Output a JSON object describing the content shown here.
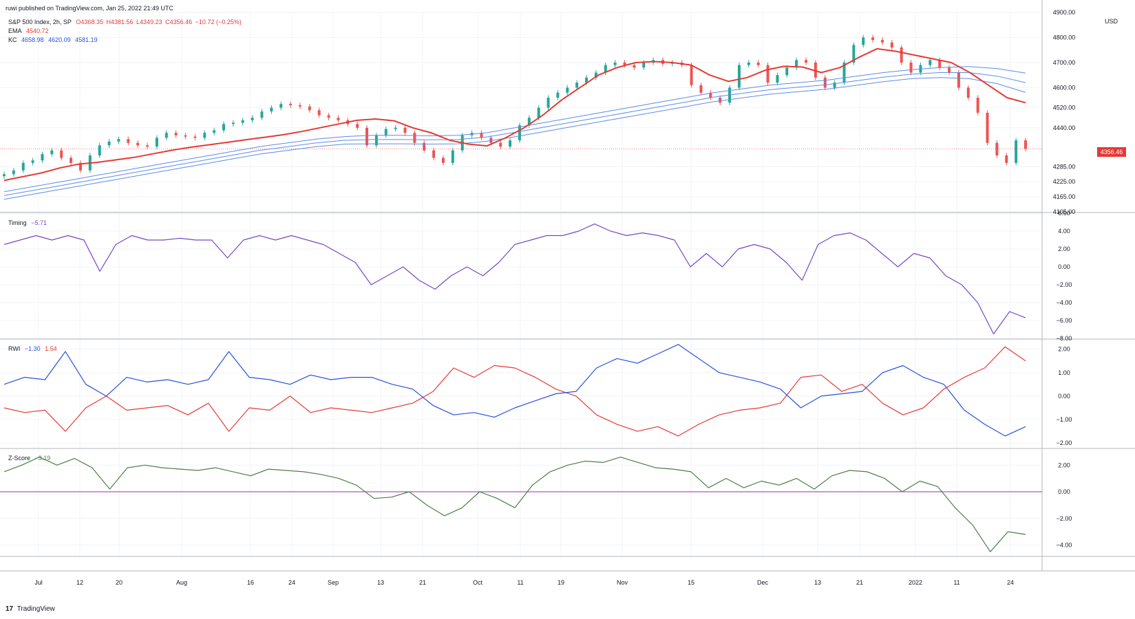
{
  "header": {
    "published": "ruwi published on TradingView.com, Jan 25, 2022 21:49 UTC"
  },
  "price_pane": {
    "symbol_line": "S&P 500 Index, 2h, SP",
    "ohlc": {
      "o": "O4368.35",
      "h": "H4381.56",
      "l": "L4349.23",
      "c": "C4356.46",
      "chg": "−10.72 (−0.25%)"
    },
    "ema_label": "EMA",
    "ema_value": "4540.72",
    "kc_label": "KC",
    "kc_values": [
      "4658.98",
      "4620.09",
      "4581.19"
    ],
    "last_price": "4356.46",
    "currency": "USD"
  },
  "timing_pane": {
    "label": "Timing",
    "value": "−5.71"
  },
  "rwi_pane": {
    "label": "RWI",
    "value_low": "−1.30",
    "value_high": "1.54"
  },
  "zscore_pane": {
    "label": "Z-Score",
    "value": "−3.19"
  },
  "footer": {
    "brand": "TradingView",
    "logo_glyph": "17"
  },
  "colors": {
    "ema": "#e53935",
    "kc": "#5b8ce8",
    "timing": "#7348c8",
    "rwi_high": "#e53935",
    "rwi_low": "#2451e0",
    "zscore": "#4d7d46",
    "up": "#26a69a",
    "down": "#ef5350",
    "zero_line": "#9c27b0"
  },
  "chart_data": [
    {
      "type": "candlestick",
      "title": "S&P 500 Index, 2h, SP",
      "ylim": [
        4105,
        4900
      ],
      "y_ticks": [
        "4105.00",
        "4165.00",
        "4225.00",
        "4285.00",
        "4356.46",
        "4440.00",
        "4520.00",
        "4600.00",
        "4700.00",
        "4800.00",
        "4900.00"
      ],
      "x_ticks": [
        "Jul",
        "12",
        "20",
        "Aug",
        "16",
        "24",
        "Sep",
        "13",
        "21",
        "Oct",
        "11",
        "19",
        "Nov",
        "15",
        "Dec",
        "13",
        "21",
        "2022",
        "11",
        "24"
      ],
      "series": [
        {
          "name": "S&P 500",
          "close": [
            4255,
            4270,
            4300,
            4310,
            4335,
            4350,
            4320,
            4300,
            4270,
            4330,
            4370,
            4385,
            4395,
            4380,
            4370,
            4365,
            4400,
            4420,
            4410,
            4405,
            4400,
            4420,
            4430,
            4455,
            4460,
            4470,
            4480,
            4505,
            4520,
            4535,
            4530,
            4525,
            4510,
            4490,
            4480,
            4470,
            4455,
            4440,
            4370,
            4410,
            4435,
            4440,
            4420,
            4380,
            4350,
            4320,
            4300,
            4350,
            4410,
            4420,
            4400,
            4380,
            4365,
            4390,
            4450,
            4480,
            4520,
            4560,
            4580,
            4600,
            4620,
            4640,
            4660,
            4690,
            4700,
            4690,
            4680,
            4700,
            4710,
            4695,
            4700,
            4690,
            4610,
            4580,
            4560,
            4540,
            4600,
            4690,
            4700,
            4690,
            4620,
            4650,
            4680,
            4710,
            4700,
            4640,
            4600,
            4620,
            4700,
            4770,
            4800,
            4790,
            4780,
            4760,
            4700,
            4660,
            4690,
            4710,
            4680,
            4660,
            4600,
            4560,
            4500,
            4380,
            4330,
            4300,
            4390,
            4356
          ]
        },
        {
          "name": "EMA",
          "values": [
            4230,
            4245,
            4260,
            4280,
            4295,
            4302,
            4312,
            4322,
            4336,
            4350,
            4362,
            4372,
            4382,
            4392,
            4402,
            4412,
            4425,
            4440,
            4455,
            4470,
            4475,
            4468,
            4440,
            4420,
            4390,
            4375,
            4368,
            4400,
            4440,
            4490,
            4550,
            4600,
            4650,
            4680,
            4700,
            4704,
            4700,
            4690,
            4650,
            4625,
            4640,
            4670,
            4685,
            4682,
            4660,
            4680,
            4720,
            4755,
            4745,
            4730,
            4715,
            4700,
            4660,
            4610,
            4560,
            4540
          ]
        },
        {
          "name": "KC upper",
          "values": [
            4185,
            4205,
            4225,
            4245,
            4265,
            4285,
            4305,
            4325,
            4345,
            4365,
            4380,
            4395,
            4405,
            4410,
            4410,
            4408,
            4410,
            4420,
            4440,
            4460,
            4480,
            4500,
            4520,
            4540,
            4560,
            4580,
            4595,
            4610,
            4620,
            4630,
            4645,
            4660,
            4672,
            4680,
            4684,
            4676,
            4658
          ]
        },
        {
          "name": "KC middle",
          "values": [
            4170,
            4190,
            4210,
            4230,
            4250,
            4270,
            4290,
            4310,
            4330,
            4350,
            4365,
            4380,
            4390,
            4393,
            4393,
            4392,
            4393,
            4403,
            4422,
            4442,
            4462,
            4482,
            4502,
            4522,
            4542,
            4562,
            4577,
            4592,
            4602,
            4612,
            4627,
            4642,
            4654,
            4660,
            4660,
            4646,
            4620
          ]
        },
        {
          "name": "KC lower",
          "values": [
            4155,
            4175,
            4195,
            4215,
            4235,
            4255,
            4275,
            4295,
            4315,
            4335,
            4350,
            4365,
            4375,
            4376,
            4376,
            4375,
            4376,
            4386,
            4404,
            4424,
            4444,
            4464,
            4484,
            4504,
            4524,
            4544,
            4559,
            4574,
            4584,
            4594,
            4609,
            4624,
            4636,
            4640,
            4636,
            4616,
            4581
          ]
        }
      ]
    },
    {
      "type": "line",
      "title": "Timing",
      "ylim": [
        -8,
        6
      ],
      "y_ticks": [
        "6.00",
        "4.00",
        "2.00",
        "0.00",
        "−2.00",
        "−4.00",
        "−6.00",
        "−8.00"
      ],
      "series": [
        {
          "name": "Timing",
          "values": [
            2.5,
            3,
            3.5,
            3,
            3.5,
            3,
            -0.5,
            2.5,
            3.5,
            3,
            3,
            3.2,
            3,
            3,
            1,
            3,
            3.5,
            3,
            3.5,
            3,
            2.5,
            1.5,
            0.5,
            -2,
            -1,
            0,
            -1.5,
            -2.5,
            -1,
            0,
            -1,
            0.5,
            2.5,
            3,
            3.5,
            3.5,
            4,
            4.8,
            4,
            3.5,
            3.8,
            3.5,
            3,
            0,
            1.5,
            0,
            2,
            2.5,
            2,
            0.5,
            -1.5,
            2.5,
            3.5,
            3.8,
            3,
            1.5,
            0,
            1.5,
            1,
            -1,
            -2,
            -4,
            -7.5,
            -5,
            -5.7
          ]
        }
      ]
    },
    {
      "type": "line",
      "title": "RWI",
      "ylim": [
        -2.2,
        2.4
      ],
      "y_ticks": [
        "2.00",
        "1.00",
        "0.00",
        "−1.00",
        "−2.00"
      ],
      "series": [
        {
          "name": "RWI high",
          "values": [
            -0.5,
            -0.7,
            -0.6,
            -1.5,
            -0.5,
            0,
            -0.6,
            -0.5,
            -0.4,
            -0.8,
            -0.3,
            -1.5,
            -0.5,
            -0.6,
            0,
            -0.7,
            -0.5,
            -0.6,
            -0.7,
            -0.5,
            -0.3,
            0.2,
            1.2,
            0.8,
            1.3,
            1.2,
            0.8,
            0.3,
            0,
            -0.8,
            -1.2,
            -1.5,
            -1.3,
            -1.7,
            -1.2,
            -0.8,
            -0.6,
            -0.5,
            -0.3,
            0.8,
            0.9,
            0.2,
            0.5,
            -0.3,
            -0.8,
            -0.5,
            0.3,
            0.8,
            1.2,
            2.1,
            1.5
          ]
        },
        {
          "name": "RWI low",
          "values": [
            0.5,
            0.8,
            0.7,
            1.9,
            0.5,
            0,
            0.8,
            0.6,
            0.7,
            0.5,
            0.7,
            1.9,
            0.8,
            0.7,
            0.5,
            0.9,
            0.7,
            0.8,
            0.8,
            0.5,
            0.3,
            -0.4,
            -0.8,
            -0.7,
            -0.9,
            -0.5,
            -0.2,
            0.1,
            0.2,
            1.2,
            1.6,
            1.4,
            1.8,
            2.2,
            1.6,
            1.0,
            0.8,
            0.6,
            0.3,
            -0.5,
            0,
            0.1,
            0.2,
            1.0,
            1.3,
            0.8,
            0.5,
            -0.6,
            -1.2,
            -1.7,
            -1.3
          ]
        }
      ]
    },
    {
      "type": "line",
      "title": "Z-Score",
      "ylim": [
        -4.8,
        3.2
      ],
      "y_ticks": [
        "2.00",
        "0.00",
        "−2.00",
        "−4.00"
      ],
      "series": [
        {
          "name": "Z-Score",
          "values": [
            1.5,
            2,
            2.6,
            2,
            2.5,
            1.8,
            0.2,
            1.8,
            2,
            1.8,
            1.7,
            1.6,
            1.8,
            1.5,
            1.2,
            1.7,
            1.6,
            1.5,
            1.3,
            1,
            0.5,
            -0.5,
            -0.4,
            0,
            -1,
            -1.8,
            -1.2,
            0,
            -0.5,
            -1.2,
            0.5,
            1.5,
            2,
            2.3,
            2.2,
            2.6,
            2.2,
            1.8,
            1.7,
            1.5,
            0.3,
            1,
            0.3,
            0.8,
            0.5,
            1,
            0.2,
            1.2,
            1.6,
            1.5,
            1,
            0,
            0.8,
            0.4,
            -1.2,
            -2.5,
            -4.5,
            -3,
            -3.2
          ]
        }
      ]
    }
  ]
}
